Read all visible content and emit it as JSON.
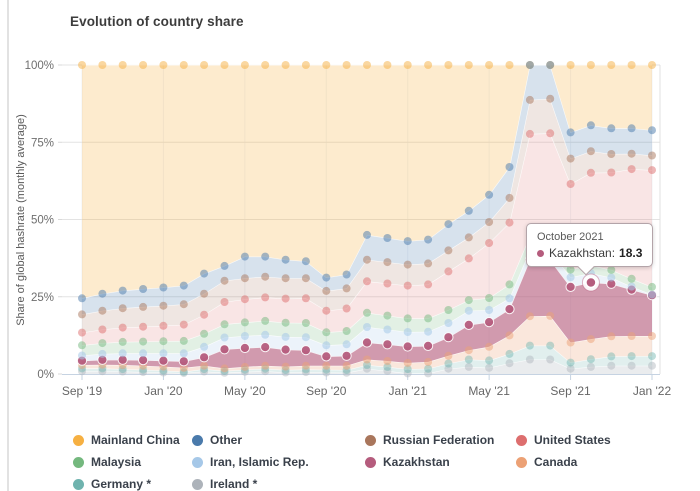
{
  "header": {
    "title": "Evolution of country share"
  },
  "y_axis": {
    "title": "Share of global hashrate (monthly average)",
    "tick_labels": [
      "0%",
      "25%",
      "50%",
      "75%",
      "100%"
    ],
    "range": [
      0,
      100
    ]
  },
  "x_axis": {
    "tick_labels": [
      "Sep '19",
      "Jan '20",
      "May '20",
      "Sep '20",
      "Jan '21",
      "May '21",
      "Sep '21",
      "Jan '22"
    ]
  },
  "tooltip": {
    "title": "October 2021",
    "series": "Kazakhstan",
    "series_label": "Kazakhstan:",
    "value": "18.3",
    "month_index": 25
  },
  "legend": {
    "items": [
      {
        "label": "Mainland China",
        "color": "#f6b042"
      },
      {
        "label": "Other",
        "color": "#4a7aab"
      },
      {
        "label": "Russian Federation",
        "color": "#a9765c"
      },
      {
        "label": "United States",
        "color": "#dd6e6e"
      },
      {
        "label": "Malaysia",
        "color": "#74b87e"
      },
      {
        "label": "Iran, Islamic Rep.",
        "color": "#a6c8e8"
      },
      {
        "label": "Kazakhstan",
        "color": "#b55c7d"
      },
      {
        "label": "Canada",
        "color": "#eca175"
      },
      {
        "label": "Germany *",
        "color": "#6fb3ae"
      },
      {
        "label": "Ireland *",
        "color": "#adb3ba"
      }
    ]
  },
  "chart_data": {
    "type": "area",
    "stacking": "stacked-percent",
    "title": "Evolution of country share",
    "xlabel": "",
    "ylabel": "Share of global hashrate (monthly average)",
    "ylim": [
      0,
      100
    ],
    "grid": true,
    "legend_position": "bottom",
    "x": [
      "Sep 2019",
      "Oct 2019",
      "Nov 2019",
      "Dec 2019",
      "Jan 2020",
      "Feb 2020",
      "Mar 2020",
      "Apr 2020",
      "May 2020",
      "Jun 2020",
      "Jul 2020",
      "Aug 2020",
      "Sep 2020",
      "Oct 2020",
      "Nov 2020",
      "Dec 2020",
      "Jan 2021",
      "Feb 2021",
      "Mar 2021",
      "Apr 2021",
      "May 2021",
      "Jun 2021",
      "Jul 2021",
      "Aug 2021",
      "Sep 2021",
      "Oct 2021",
      "Nov 2021",
      "Dec 2021",
      "Jan 2022"
    ],
    "series": [
      {
        "name": "Ireland *",
        "color": "#adb3ba",
        "values": [
          0.9,
          0.9,
          0.8,
          0.6,
          0.5,
          0.3,
          0.8,
          0.4,
          0.7,
          0.9,
          0.5,
          0.6,
          0.5,
          0.4,
          1.7,
          1.0,
          0.2,
          0.2,
          1.7,
          2.3,
          2.0,
          3.5,
          4.7,
          4.7,
          1.7,
          2.3,
          2.7,
          2.7,
          2.7
        ]
      },
      {
        "name": "Germany *",
        "color": "#6fb3ae",
        "values": [
          0.9,
          0.9,
          0.8,
          0.8,
          0.6,
          0.4,
          0.8,
          0.6,
          0.7,
          0.8,
          0.8,
          0.9,
          0.9,
          0.9,
          1.2,
          1.3,
          1.4,
          1.5,
          1.7,
          2.4,
          2.4,
          3.0,
          4.5,
          4.5,
          2.0,
          2.5,
          3.0,
          3.1,
          3.1
        ]
      },
      {
        "name": "Canada",
        "color": "#eca175",
        "values": [
          1.1,
          1.2,
          1.3,
          1.3,
          1.3,
          1.3,
          1.1,
          0.8,
          0.9,
          1.0,
          1.1,
          1.2,
          1.3,
          1.4,
          1.8,
          1.9,
          2.0,
          2.2,
          2.5,
          3.0,
          4.4,
          6.0,
          9.5,
          9.6,
          6.5,
          6.5,
          6.5,
          6.5,
          6.5
        ]
      },
      {
        "name": "Kazakhstan",
        "color": "#b55c7d",
        "values": [
          1.4,
          1.6,
          1.7,
          1.8,
          1.9,
          2.1,
          2.7,
          6.2,
          6.1,
          6.0,
          5.5,
          5.0,
          3.0,
          3.2,
          5.5,
          5.4,
          5.3,
          5.2,
          6.0,
          8.2,
          8.0,
          8.5,
          18.3,
          18.1,
          18.0,
          18.3,
          17.0,
          15.0,
          13.2
        ]
      },
      {
        "name": "Iran, Islamic Rep.",
        "color": "#a6c8e8",
        "values": [
          1.7,
          1.9,
          2.1,
          2.2,
          2.4,
          2.6,
          3.4,
          3.8,
          3.9,
          4.0,
          4.1,
          4.2,
          3.6,
          3.7,
          5.0,
          4.8,
          4.7,
          4.6,
          4.6,
          4.6,
          3.9,
          3.5,
          3.1,
          3.1,
          3.1,
          3.0,
          2.0,
          1.0,
          0.2
        ]
      },
      {
        "name": "Malaysia",
        "color": "#74b87e",
        "values": [
          3.3,
          3.5,
          3.7,
          3.8,
          3.9,
          4.0,
          4.2,
          4.3,
          4.4,
          4.5,
          4.6,
          4.6,
          4.2,
          4.3,
          4.6,
          4.5,
          4.4,
          4.3,
          4.2,
          3.4,
          3.9,
          4.5,
          4.6,
          2.5,
          2.5,
          2.5,
          2.5,
          2.5,
          2.5
        ]
      },
      {
        "name": "United States",
        "color": "#dd6e6e",
        "values": [
          4.1,
          4.4,
          4.6,
          4.8,
          5.0,
          5.3,
          6.2,
          7.2,
          7.5,
          7.6,
          7.8,
          8.0,
          7.0,
          7.3,
          10.2,
          10.4,
          10.6,
          11.0,
          12.5,
          13.5,
          17.8,
          20.0,
          33.0,
          35.4,
          27.7,
          30.0,
          31.5,
          35.5,
          37.8
        ]
      },
      {
        "name": "Russian Federation",
        "color": "#a9765c",
        "values": [
          5.9,
          6.1,
          6.3,
          6.4,
          6.5,
          6.6,
          6.8,
          6.9,
          6.8,
          6.7,
          6.6,
          6.5,
          6.4,
          6.5,
          7.0,
          6.9,
          6.8,
          6.8,
          6.8,
          6.8,
          6.8,
          8.0,
          11.0,
          11.2,
          8.2,
          7.0,
          6.0,
          5.0,
          4.7
        ]
      },
      {
        "name": "Other",
        "color": "#4a7aab",
        "values": [
          5.2,
          5.5,
          5.7,
          5.8,
          5.9,
          6.0,
          6.5,
          4.8,
          7.0,
          6.5,
          6.0,
          5.5,
          4.3,
          4.5,
          8.0,
          7.8,
          7.6,
          7.7,
          8.5,
          8.6,
          8.8,
          10.0,
          11.3,
          10.9,
          8.5,
          8.4,
          8.3,
          8.2,
          8.2
        ]
      },
      {
        "name": "Mainland China",
        "color": "#f6b042",
        "values": [
          75.5,
          74.0,
          73.0,
          72.5,
          72.0,
          71.4,
          67.5,
          65.0,
          62.0,
          62.0,
          63.0,
          63.5,
          68.8,
          67.8,
          55.0,
          56.0,
          57.0,
          56.5,
          51.5,
          47.2,
          42.0,
          33.0,
          0.0,
          0.0,
          21.8,
          19.5,
          20.5,
          20.5,
          21.1
        ]
      }
    ]
  }
}
